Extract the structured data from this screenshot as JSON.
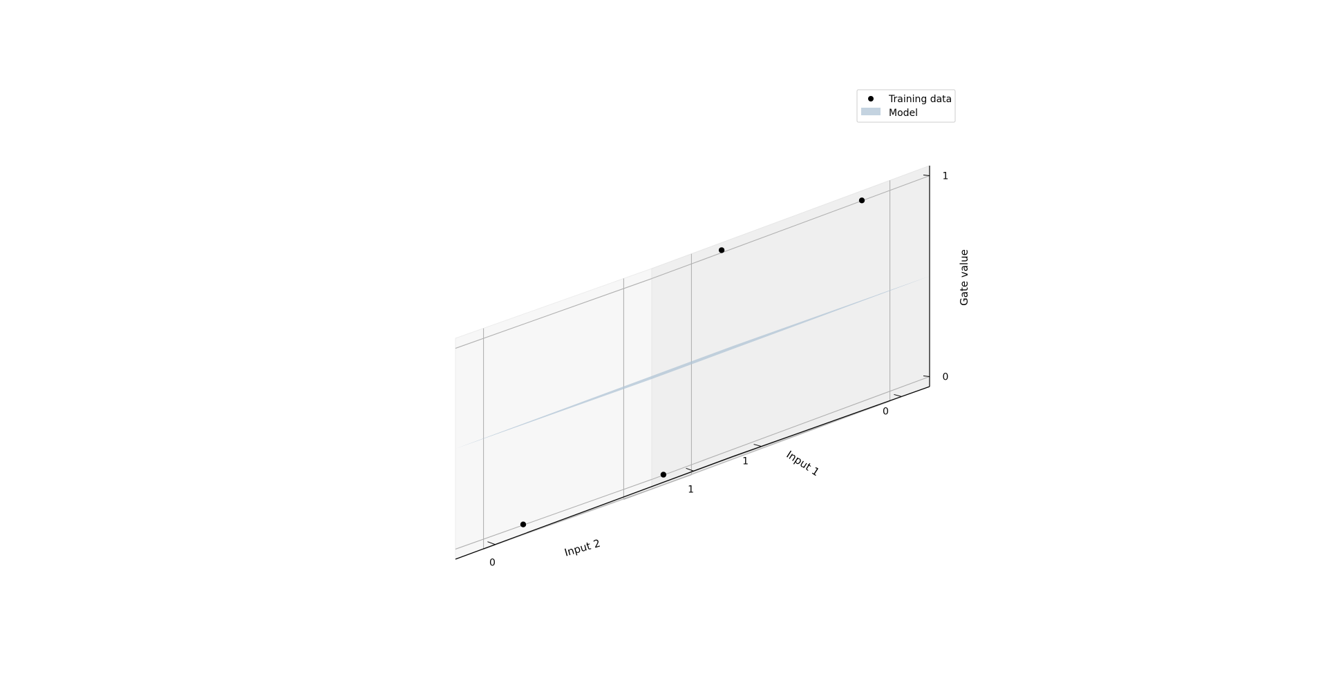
{
  "chart_data": {
    "type": "scatter",
    "projection": "3d",
    "grid": true,
    "legend_position": "top-right",
    "xlabel": "Input 1",
    "ylabel": "Input 2",
    "zlabel": "Gate value",
    "x_ticks": [
      "0",
      "1"
    ],
    "y_ticks": [
      "0",
      "1"
    ],
    "z_ticks": [
      "0",
      "1"
    ],
    "xlim": [
      -0.2,
      1.2
    ],
    "ylim": [
      -0.2,
      1.2
    ],
    "zlim": [
      -0.05,
      1.05
    ],
    "series": [
      {
        "name": "Training data",
        "kind": "scatter",
        "color": "#000000",
        "points": [
          {
            "x": 0,
            "y": 0,
            "z": 0
          },
          {
            "x": 0,
            "y": 1,
            "z": 1
          },
          {
            "x": 1,
            "y": 0,
            "z": 0
          },
          {
            "x": 1,
            "y": 1,
            "z": 1
          }
        ]
      },
      {
        "name": "Model",
        "kind": "surface",
        "color": "#b0c4d5",
        "corners": [
          {
            "x": -0.2,
            "y": -0.2,
            "z": 0.5
          },
          {
            "x": -0.2,
            "y": 1.2,
            "z": 0.5
          },
          {
            "x": 1.2,
            "y": 1.2,
            "z": 0.5
          },
          {
            "x": 1.2,
            "y": -0.2,
            "z": 0.5
          }
        ]
      }
    ]
  }
}
